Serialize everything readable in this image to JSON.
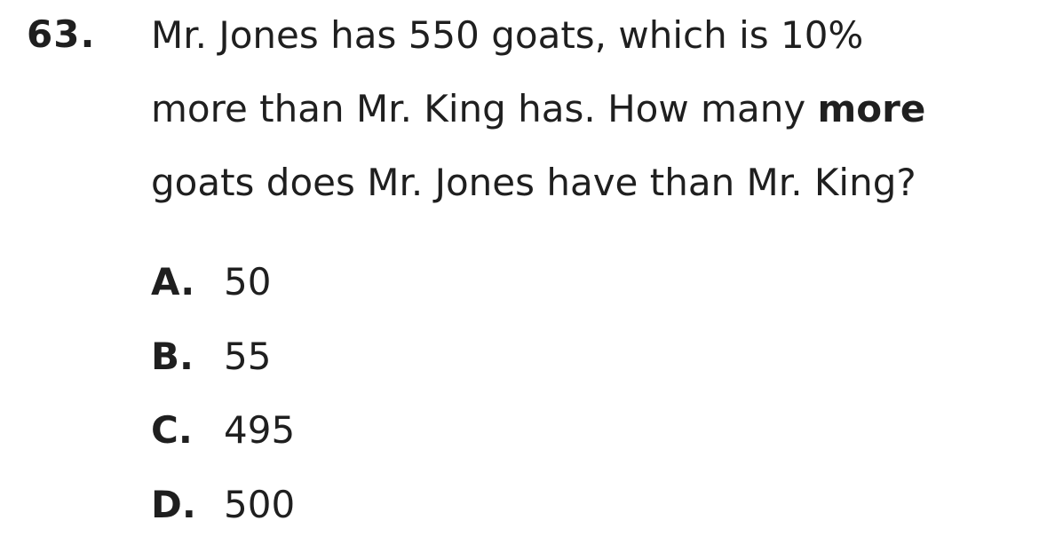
{
  "question": {
    "number": "63.",
    "line1": "Mr. Jones has 550 goats, which is 10%",
    "line2_before": "more than Mr. King has. How many ",
    "line2_bold": "more",
    "line3": "goats does Mr. Jones have than Mr. King?"
  },
  "choices": [
    {
      "letter": "A.",
      "text": "50"
    },
    {
      "letter": "B.",
      "text": "55"
    },
    {
      "letter": "C.",
      "text": "495"
    },
    {
      "letter": "D.",
      "text": "500"
    }
  ]
}
